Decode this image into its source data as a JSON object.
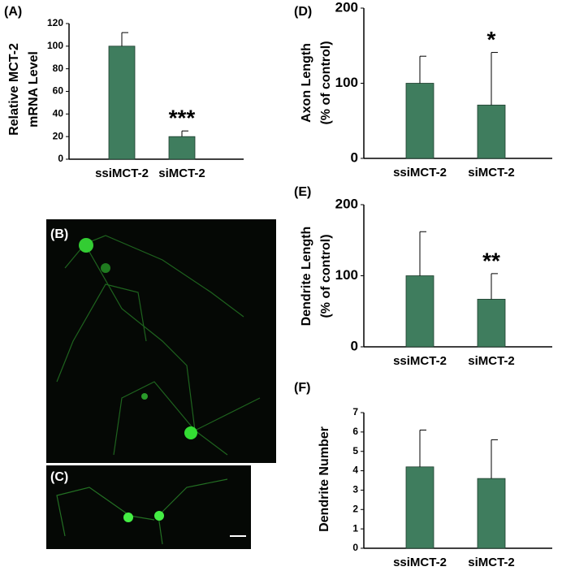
{
  "chart_data": [
    {
      "type": "bar",
      "panel_label": "(A)",
      "ylabel": [
        "Relative MCT-2",
        "mRNA Level"
      ],
      "categories": [
        "ssiMCT-2",
        "siMCT-2"
      ],
      "values": [
        100,
        20
      ],
      "errors": [
        12,
        5
      ],
      "annotation": "***",
      "ylim": [
        0,
        120
      ],
      "yticks": [
        0,
        20,
        40,
        60,
        80,
        100,
        120
      ],
      "color": "#3f7d5e"
    },
    {
      "type": "bar",
      "panel_label": "(D)",
      "ylabel": [
        "Axon Length",
        "(% of control)"
      ],
      "categories": [
        "ssiMCT-2",
        "siMCT-2"
      ],
      "values": [
        100,
        71
      ],
      "errors": [
        36,
        70
      ],
      "annotation": "*",
      "ylim": [
        0,
        200
      ],
      "yticks": [
        0,
        100,
        200
      ],
      "color": "#3f7d5e"
    },
    {
      "type": "bar",
      "panel_label": "(E)",
      "ylabel": [
        "Dendrite Length",
        "(% of control)"
      ],
      "categories": [
        "ssiMCT-2",
        "siMCT-2"
      ],
      "values": [
        100,
        67
      ],
      "errors": [
        62,
        36
      ],
      "annotation": "**",
      "ylim": [
        0,
        200
      ],
      "yticks": [
        0,
        100,
        200
      ],
      "color": "#3f7d5e"
    },
    {
      "type": "bar",
      "panel_label": "(F)",
      "ylabel": [
        "Dendrite Number"
      ],
      "categories": [
        "ssiMCT-2",
        "siMCT-2"
      ],
      "values": [
        4.2,
        3.6
      ],
      "errors": [
        1.9,
        2.0
      ],
      "ylim": [
        0,
        7
      ],
      "yticks": [
        0,
        1,
        2,
        3,
        4,
        5,
        6,
        7
      ],
      "color": "#3f7d5e"
    }
  ],
  "images": {
    "B": {
      "label": "(B)"
    },
    "C": {
      "label": "(C)"
    }
  }
}
